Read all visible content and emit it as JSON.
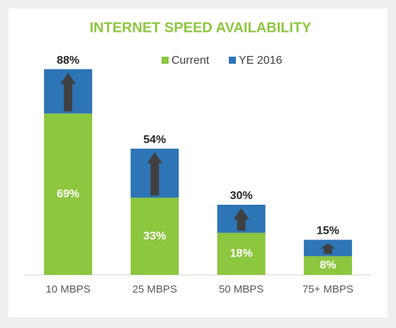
{
  "chart_data": {
    "type": "stacked_bar",
    "title": "INTERNET SPEED AVAILABILITY",
    "categories": [
      "10 MBPS",
      "25 MBPS",
      "50 MBPS",
      "75+ MBPS"
    ],
    "series": [
      {
        "name": "Current",
        "color": "#8dc63f",
        "values": [
          69,
          33,
          18,
          8
        ],
        "value_labels": [
          "69%",
          "33%",
          "18%",
          "8%"
        ]
      },
      {
        "name": "YE 2016",
        "color": "#2e75b6",
        "values": [
          19,
          21,
          12,
          7
        ]
      }
    ],
    "totals": [
      88,
      54,
      30,
      15
    ],
    "total_labels": [
      "88%",
      "54%",
      "30%",
      "15%"
    ],
    "ylim": [
      0,
      100
    ],
    "legend": "top"
  }
}
